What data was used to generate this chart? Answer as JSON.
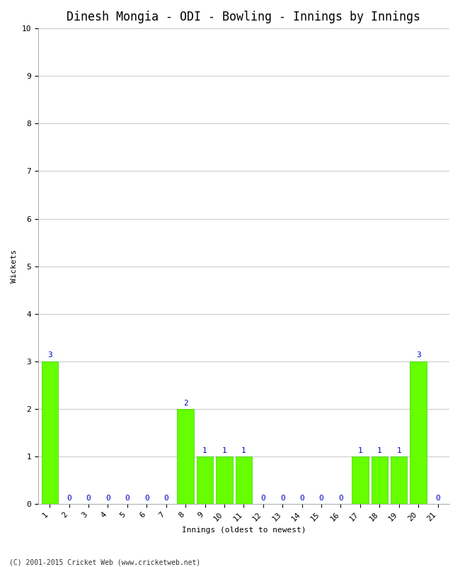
{
  "title": "Dinesh Mongia - ODI - Bowling - Innings by Innings",
  "xlabel": "Innings (oldest to newest)",
  "ylabel": "Wickets",
  "innings": [
    1,
    2,
    3,
    4,
    5,
    6,
    7,
    8,
    9,
    10,
    11,
    12,
    13,
    14,
    15,
    16,
    17,
    18,
    19,
    20,
    21
  ],
  "wickets": [
    3,
    0,
    0,
    0,
    0,
    0,
    0,
    2,
    1,
    1,
    1,
    0,
    0,
    0,
    0,
    0,
    1,
    1,
    1,
    3,
    0
  ],
  "bar_color": "#66ff00",
  "bar_edge_color": "#44cc00",
  "ylim": [
    0,
    10
  ],
  "yticks": [
    0,
    1,
    2,
    3,
    4,
    5,
    6,
    7,
    8,
    9,
    10
  ],
  "label_color": "#0000cc",
  "background_color": "#ffffff",
  "grid_color": "#cccccc",
  "title_fontsize": 12,
  "axis_label_fontsize": 8,
  "tick_label_fontsize": 8,
  "annotation_fontsize": 8,
  "footer": "(C) 2001-2015 Cricket Web (www.cricketweb.net)"
}
